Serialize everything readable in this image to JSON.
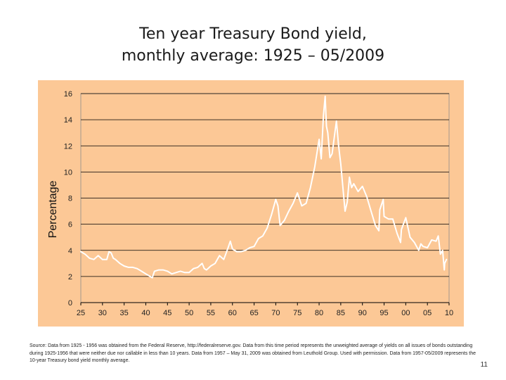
{
  "slide": {
    "title_line1": "Ten year Treasury Bond yield,",
    "title_line2": "monthly average: 1925 – 05/2009",
    "source": "Source: Data from 1925 - 1956 was obtained from the Federal Reserve, http://federalreserve.gov. Data from this time period represents the unweighted average of yields on all issues of bonds outstanding during 1925-1956 that were neither due nor callable in less than 10 years.  Data from 1957 – May 31, 2009 was obtained from Leuthold Group. Used with permission.  Data from 1957-05/2009 represents the 10-year Treasury bond yield monthly average.",
    "page_number": "11",
    "colors": {
      "panel_background": "#fcc896",
      "line": "#ffffff",
      "gridline": "#000000"
    }
  },
  "chart_data": {
    "type": "line",
    "title": "",
    "xlabel": "",
    "ylabel": "Percentage",
    "x_unit": "year",
    "xlim": [
      1925,
      2010
    ],
    "ylim": [
      0,
      16
    ],
    "grid": "horizontal",
    "yticks": [
      0,
      2,
      4,
      6,
      8,
      10,
      12,
      14,
      16
    ],
    "xticks": [
      {
        "value": 1925,
        "label": "25"
      },
      {
        "value": 1930,
        "label": "30"
      },
      {
        "value": 1935,
        "label": "35"
      },
      {
        "value": 1940,
        "label": "40"
      },
      {
        "value": 1945,
        "label": "45"
      },
      {
        "value": 1950,
        "label": "50"
      },
      {
        "value": 1955,
        "label": "55"
      },
      {
        "value": 1960,
        "label": "60"
      },
      {
        "value": 1965,
        "label": "65"
      },
      {
        "value": 1970,
        "label": "70"
      },
      {
        "value": 1975,
        "label": "75"
      },
      {
        "value": 1980,
        "label": "80"
      },
      {
        "value": 1985,
        "label": "85"
      },
      {
        "value": 1990,
        "label": "90"
      },
      {
        "value": 1995,
        "label": "95"
      },
      {
        "value": 2000,
        "label": "00"
      },
      {
        "value": 2005,
        "label": "05"
      },
      {
        "value": 2010,
        "label": "10"
      }
    ],
    "series": [
      {
        "x": [
          1925,
          1926,
          1927,
          1928,
          1929,
          1930,
          1931,
          1931.5,
          1932,
          1932.5,
          1933,
          1934,
          1935,
          1936,
          1937,
          1938,
          1939,
          1940,
          1941,
          1941.5,
          1942,
          1943,
          1944,
          1945,
          1946,
          1947,
          1948,
          1949,
          1950,
          1951,
          1952,
          1953,
          1953.5,
          1954,
          1955,
          1956,
          1957,
          1958,
          1959,
          1959.5,
          1960,
          1961,
          1962,
          1963,
          1964,
          1965,
          1966,
          1967,
          1968,
          1969,
          1970,
          1970.5,
          1971,
          1972,
          1973,
          1974,
          1975,
          1976,
          1977,
          1978,
          1979,
          1980,
          1980.5,
          1981,
          1981.4,
          1981.7,
          1982,
          1982.5,
          1983,
          1984,
          1984.5,
          1985,
          1986,
          1986.5,
          1987,
          1987.5,
          1988,
          1989,
          1990,
          1991,
          1992,
          1993,
          1993.8,
          1994,
          1994.8,
          1995,
          1996,
          1997,
          1998,
          1998.8,
          1999,
          2000,
          2001,
          2002,
          2003,
          2003.5,
          2004,
          2005,
          2006,
          2007,
          2007.5,
          2008,
          2008.5,
          2008.9,
          2009,
          2009.4
        ],
        "y": [
          3.9,
          3.7,
          3.4,
          3.3,
          3.6,
          3.3,
          3.3,
          3.9,
          3.8,
          3.4,
          3.3,
          3.0,
          2.8,
          2.7,
          2.7,
          2.6,
          2.4,
          2.2,
          2.0,
          1.9,
          2.4,
          2.5,
          2.5,
          2.4,
          2.2,
          2.3,
          2.4,
          2.3,
          2.3,
          2.6,
          2.7,
          3.0,
          2.6,
          2.5,
          2.8,
          3.0,
          3.6,
          3.3,
          4.2,
          4.7,
          4.1,
          3.9,
          3.9,
          4.0,
          4.2,
          4.3,
          4.9,
          5.1,
          5.7,
          6.7,
          7.9,
          7.4,
          5.9,
          6.3,
          7.0,
          7.6,
          8.4,
          7.4,
          7.6,
          8.8,
          10.4,
          12.5,
          11.0,
          14.3,
          15.8,
          13.5,
          13.0,
          11.1,
          11.4,
          13.9,
          12.0,
          10.6,
          7.0,
          7.7,
          9.6,
          8.8,
          9.1,
          8.5,
          8.9,
          8.1,
          7.0,
          5.9,
          5.5,
          7.1,
          7.9,
          6.6,
          6.4,
          6.4,
          5.3,
          4.6,
          5.6,
          6.5,
          5.0,
          4.6,
          4.0,
          4.5,
          4.3,
          4.2,
          4.8,
          4.7,
          5.1,
          3.7,
          4.0,
          2.5,
          3.0,
          3.3
        ]
      }
    ]
  }
}
